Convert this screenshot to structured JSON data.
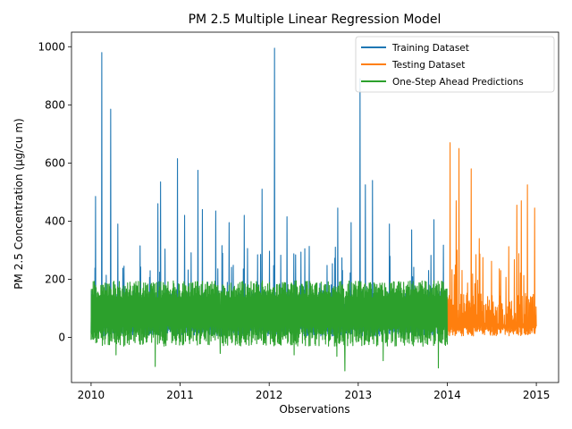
{
  "chart_data": {
    "type": "line",
    "title": "PM 2.5 Multiple Linear Regression Model",
    "xlabel": "Observations",
    "ylabel": "PM 2.5 Concentration (µg/cu m)",
    "xlim": [
      2009.78,
      2015.25
    ],
    "ylim": [
      -155,
      1050
    ],
    "xticks": [
      2010,
      2011,
      2012,
      2013,
      2014,
      2015
    ],
    "yticks": [
      0,
      200,
      400,
      600,
      800,
      1000
    ],
    "grid": false,
    "legend_position": "top-right",
    "series": [
      {
        "name": "Training Dataset",
        "color": "#1f77b4",
        "x_range": [
          2010.0,
          2014.0
        ],
        "base_level": 95,
        "peaks": [
          {
            "x": 2010.05,
            "y": 485
          },
          {
            "x": 2010.12,
            "y": 980
          },
          {
            "x": 2010.22,
            "y": 785
          },
          {
            "x": 2010.3,
            "y": 390
          },
          {
            "x": 2010.55,
            "y": 315
          },
          {
            "x": 2010.75,
            "y": 460
          },
          {
            "x": 2010.78,
            "y": 535
          },
          {
            "x": 2010.97,
            "y": 615
          },
          {
            "x": 2011.05,
            "y": 420
          },
          {
            "x": 2011.2,
            "y": 575
          },
          {
            "x": 2011.25,
            "y": 440
          },
          {
            "x": 2011.4,
            "y": 435
          },
          {
            "x": 2011.55,
            "y": 395
          },
          {
            "x": 2011.72,
            "y": 420
          },
          {
            "x": 2011.92,
            "y": 510
          },
          {
            "x": 2012.06,
            "y": 995
          },
          {
            "x": 2012.2,
            "y": 415
          },
          {
            "x": 2012.4,
            "y": 305
          },
          {
            "x": 2012.77,
            "y": 445
          },
          {
            "x": 2012.92,
            "y": 395
          },
          {
            "x": 2013.02,
            "y": 890
          },
          {
            "x": 2013.08,
            "y": 525
          },
          {
            "x": 2013.16,
            "y": 540
          },
          {
            "x": 2013.35,
            "y": 390
          },
          {
            "x": 2013.6,
            "y": 370
          },
          {
            "x": 2013.85,
            "y": 405
          }
        ]
      },
      {
        "name": "Testing Dataset",
        "color": "#ff7f0e",
        "x_range": [
          2014.0,
          2015.0
        ],
        "base_level": 90,
        "peaks": [
          {
            "x": 2014.03,
            "y": 670
          },
          {
            "x": 2014.1,
            "y": 470
          },
          {
            "x": 2014.13,
            "y": 650
          },
          {
            "x": 2014.27,
            "y": 580
          },
          {
            "x": 2014.36,
            "y": 340
          },
          {
            "x": 2014.4,
            "y": 275
          },
          {
            "x": 2014.6,
            "y": 230
          },
          {
            "x": 2014.78,
            "y": 455
          },
          {
            "x": 2014.83,
            "y": 470
          },
          {
            "x": 2014.9,
            "y": 525
          },
          {
            "x": 2014.98,
            "y": 445
          }
        ]
      },
      {
        "name": "One-Step Ahead Predictions",
        "color": "#2ca02c",
        "x_range": [
          2010.0,
          2014.0
        ],
        "base_level": 105,
        "band": [
          -30,
          195
        ],
        "dips": [
          {
            "x": 2010.28,
            "y": -60
          },
          {
            "x": 2010.72,
            "y": -100
          },
          {
            "x": 2011.45,
            "y": -55
          },
          {
            "x": 2012.28,
            "y": -60
          },
          {
            "x": 2012.76,
            "y": -65
          },
          {
            "x": 2012.85,
            "y": -115
          },
          {
            "x": 2013.28,
            "y": -80
          },
          {
            "x": 2013.9,
            "y": -105
          }
        ]
      }
    ]
  }
}
